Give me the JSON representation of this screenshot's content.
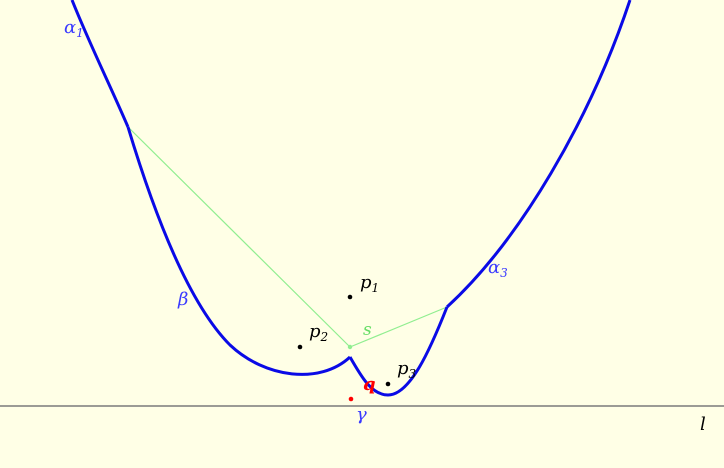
{
  "colors": {
    "background": "#ffffe6",
    "curve": "#0a0ae6",
    "construction": "#90ee90",
    "line_l": "#7a7a7a",
    "point_black": "#000000",
    "point_red": "#ff0000",
    "label_blue": "#3a3aff",
    "label_green": "#66dd66",
    "label_red": "#ff0000"
  },
  "labels": {
    "alpha1": {
      "main": "α",
      "sub": "1"
    },
    "alpha3": {
      "main": "α",
      "sub": "3"
    },
    "beta": {
      "main": "β"
    },
    "gamma": {
      "main": "γ"
    },
    "s": {
      "main": "s"
    },
    "q": {
      "main": "q"
    },
    "l": {
      "main": "l"
    },
    "p1": {
      "main": "p",
      "sub": "1"
    },
    "p2": {
      "main": "p",
      "sub": "2"
    },
    "p3": {
      "main": "p",
      "sub": "3"
    }
  }
}
